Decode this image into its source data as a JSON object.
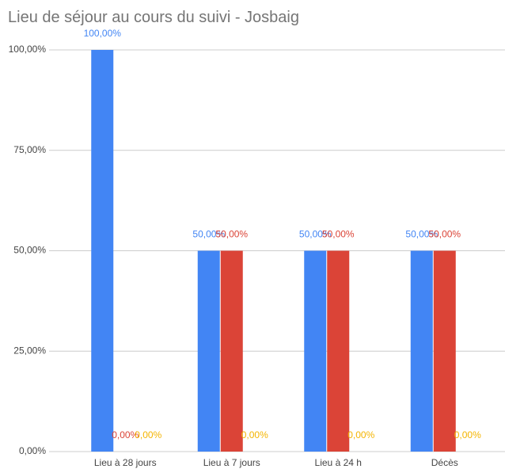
{
  "chart_data": {
    "type": "bar",
    "title": "Lieu de séjour au cours du suivi - Josbaig",
    "categories": [
      "Lieu à 28 jours",
      "Lieu à 7 jours",
      "Lieu à 24 h",
      "Décès"
    ],
    "series": [
      {
        "color": "#4285f4",
        "values": [
          100,
          50,
          50,
          50
        ],
        "value_labels": [
          "100,00%",
          "50,00%",
          "50,00%",
          "50,00%"
        ]
      },
      {
        "color": "#db4437",
        "values": [
          0,
          50,
          50,
          50
        ],
        "value_labels": [
          "0,00%",
          "50,00%",
          "50,00%",
          "50,00%"
        ]
      },
      {
        "color": "#f4b400",
        "values": [
          0,
          0,
          0,
          0
        ],
        "value_labels": [
          "0,00%",
          "0,00%",
          "0,00%",
          "0,00%"
        ]
      }
    ],
    "ylim": [
      0,
      100
    ],
    "yticks": [
      {
        "value": 0,
        "label": "0,00%"
      },
      {
        "value": 25,
        "label": "25,00%"
      },
      {
        "value": 50,
        "label": "50,00%"
      },
      {
        "value": 75,
        "label": "75,00%"
      },
      {
        "value": 100,
        "label": "100,00%"
      }
    ],
    "grid": true
  }
}
